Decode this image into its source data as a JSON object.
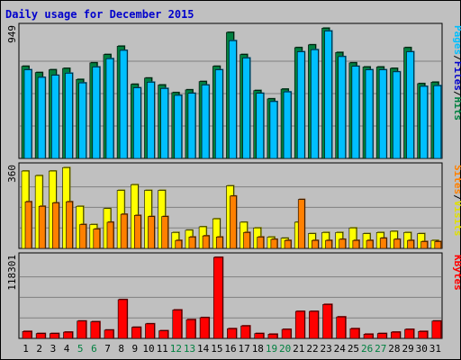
{
  "chart_data": {
    "type": "bar",
    "title": "Daily usage for December 2015",
    "categories": [
      "1",
      "2",
      "3",
      "4",
      "5",
      "6",
      "7",
      "8",
      "9",
      "10",
      "11",
      "12",
      "13",
      "14",
      "15",
      "16",
      "17",
      "18",
      "19",
      "20",
      "21",
      "22",
      "23",
      "24",
      "25",
      "26",
      "27",
      "28",
      "29",
      "30",
      "31"
    ],
    "weekend_days": [
      "5",
      "6",
      "12",
      "13",
      "19",
      "20",
      "26",
      "27"
    ],
    "panels": [
      {
        "name": "hits_files_pages",
        "ymax_label": "949",
        "ylim": [
          0,
          949
        ],
        "axis_labels": [
          "Pages",
          "/",
          "Files",
          "/",
          "Hits"
        ],
        "series": [
          {
            "name": "Hits",
            "color": "#008040",
            "values": [
              665,
              620,
              640,
              650,
              570,
              690,
              750,
              810,
              535,
              580,
              530,
              475,
              495,
              555,
              665,
              910,
              750,
              490,
              430,
              500,
              800,
              820,
              940,
              765,
              690,
              660,
              660,
              650,
              800,
              540,
              550
            ]
          },
          {
            "name": "Files",
            "color": "#00bfff",
            "values": [
              640,
              585,
              600,
              615,
              545,
              660,
              720,
              780,
              510,
              550,
              505,
              455,
              470,
              530,
              640,
              850,
              725,
              470,
              410,
              480,
              770,
              785,
              920,
              735,
              665,
              640,
              640,
              625,
              770,
              520,
              525
            ]
          },
          {
            "name": "Pages",
            "color": "#00bfff",
            "values": [
              0,
              0,
              0,
              0,
              0,
              0,
              0,
              0,
              0,
              0,
              0,
              0,
              0,
              0,
              0,
              0,
              0,
              0,
              0,
              0,
              0,
              0,
              0,
              0,
              0,
              0,
              0,
              0,
              0,
              0,
              0
            ]
          }
        ]
      },
      {
        "name": "visits_sites",
        "ymax_label": "360",
        "ylim": [
          0,
          360
        ],
        "axis_labels": [
          "Sites",
          "/",
          "Visits"
        ],
        "series": [
          {
            "name": "Visits",
            "color": "#ffff00",
            "values": [
              340,
              320,
              340,
              355,
              185,
              105,
              175,
              255,
              280,
              255,
              255,
              70,
              80,
              95,
              130,
              275,
              115,
              90,
              50,
              45,
              115,
              65,
              70,
              70,
              90,
              65,
              70,
              75,
              70,
              65,
              35
            ]
          },
          {
            "name": "Sites",
            "color": "#ff8000",
            "values": [
              205,
              185,
              200,
              205,
              105,
              85,
              115,
              150,
              145,
              140,
              140,
              35,
              50,
              55,
              50,
              230,
              70,
              50,
              40,
              35,
              215,
              35,
              35,
              40,
              35,
              35,
              45,
              40,
              35,
              30,
              30
            ]
          }
        ]
      },
      {
        "name": "kbytes",
        "ymax_label": "118301",
        "ylim": [
          0,
          118301
        ],
        "axis_labels": [
          "KBytes"
        ],
        "series": [
          {
            "name": "KBytes",
            "color": "#ff0000",
            "values": [
              10000,
              7000,
              7000,
              9000,
              25000,
              24000,
              12000,
              56000,
              16000,
              21000,
              11000,
              41000,
              27000,
              30000,
              117000,
              14000,
              18000,
              7000,
              6000,
              13000,
              39000,
              39000,
              49000,
              31000,
              14000,
              6000,
              7000,
              9000,
              13000,
              10000,
              25000
            ]
          }
        ]
      }
    ]
  }
}
